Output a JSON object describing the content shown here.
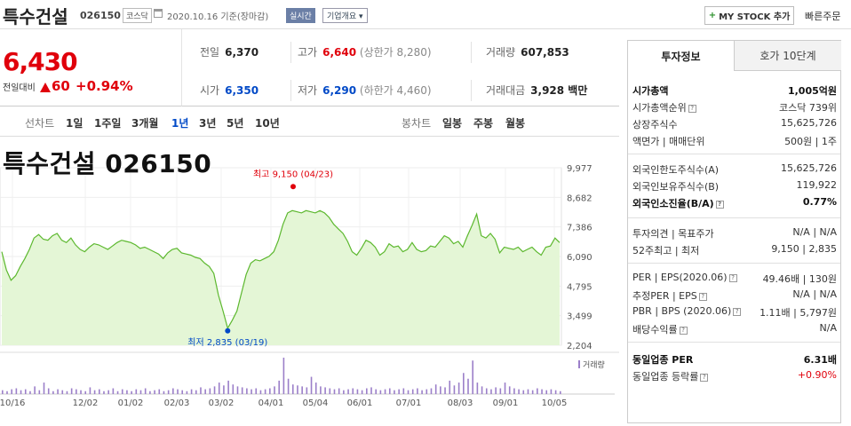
{
  "header": {
    "stock_name": "특수건설",
    "stock_code": "026150",
    "market": "코스닥",
    "date": "2020.10.16 기준(장마감)",
    "realtime": "실시간",
    "company_info": "기업개요",
    "my_stock": "MY STOCK 추가",
    "quick_order": "빠른주문"
  },
  "price": {
    "current": "6,430",
    "change_label": "전일대비",
    "change": "60",
    "change_pct": "+0.94%"
  },
  "stats": {
    "prev_close_label": "전일",
    "prev_close": "6,370",
    "high_label": "고가",
    "high": "6,640",
    "upper_limit": "(상한가 8,280)",
    "volume_label": "거래량",
    "volume": "607,853",
    "open_label": "시가",
    "open": "6,350",
    "low_label": "저가",
    "low": "6,290",
    "lower_limit": "(하한가 4,460)",
    "trade_value_label": "거래대금",
    "trade_value": "3,928 백만"
  },
  "period_tabs": {
    "label": "선차트",
    "items": [
      "1일",
      "1주일",
      "3개월",
      "1년",
      "3년",
      "5년",
      "10년"
    ],
    "selected": "1년",
    "candle_label": "봉차트",
    "candle_items": [
      "일봉",
      "주봉",
      "월봉"
    ]
  },
  "chart_data": {
    "type": "area",
    "title": "특수건설 026150",
    "y_ticks": [
      "9,977",
      "8,682",
      "7,386",
      "6,090",
      "4,795",
      "3,499",
      "2,204"
    ],
    "ylim": [
      2204,
      9977
    ],
    "x_ticks": [
      "10/16",
      "12/02",
      "01/02",
      "02/03",
      "03/02",
      "04/01",
      "05/04",
      "06/01",
      "07/01",
      "08/03",
      "09/01",
      "10/05"
    ],
    "high_label": "최고 9,150 (04/23)",
    "low_label": "최저 2,835 (03/19)",
    "volume_legend": "거래량",
    "values": [
      6300,
      5500,
      5050,
      5250,
      5650,
      6000,
      6400,
      6900,
      7050,
      6850,
      6800,
      7000,
      7100,
      6800,
      6700,
      6900,
      6600,
      6400,
      6300,
      6500,
      6650,
      6600,
      6500,
      6400,
      6550,
      6700,
      6800,
      6750,
      6700,
      6600,
      6450,
      6500,
      6400,
      6300,
      6200,
      6000,
      6250,
      6400,
      6450,
      6250,
      6200,
      6150,
      6050,
      6000,
      5800,
      5650,
      5350,
      4400,
      3700,
      2950,
      3300,
      3700,
      4500,
      5300,
      5800,
      5950,
      5900,
      6000,
      6100,
      6300,
      6800,
      7500,
      8000,
      8100,
      8050,
      8000,
      8100,
      8050,
      8000,
      8100,
      8000,
      7800,
      7500,
      7300,
      7100,
      6750,
      6300,
      6150,
      6450,
      6800,
      6700,
      6500,
      6150,
      6300,
      6650,
      6500,
      6550,
      6300,
      6400,
      6700,
      6400,
      6300,
      6350,
      6550,
      6500,
      6750,
      7000,
      6900,
      6650,
      6750,
      6500,
      7000,
      7450,
      7950,
      7000,
      6900,
      7100,
      6850,
      6250,
      6500,
      6450,
      6400,
      6500,
      6300,
      6400,
      6500,
      6300,
      6150,
      6500,
      6550,
      6900,
      6700
    ],
    "volume_values": [
      4,
      3,
      5,
      6,
      4,
      5,
      3,
      8,
      4,
      12,
      6,
      3,
      5,
      4,
      3,
      6,
      5,
      4,
      3,
      7,
      4,
      5,
      3,
      4,
      6,
      3,
      5,
      4,
      3,
      5,
      4,
      6,
      3,
      4,
      5,
      3,
      4,
      6,
      5,
      4,
      3,
      5,
      4,
      7,
      5,
      6,
      8,
      12,
      9,
      14,
      10,
      8,
      7,
      6,
      5,
      6,
      4,
      5,
      6,
      8,
      14,
      38,
      16,
      10,
      9,
      8,
      7,
      18,
      12,
      8,
      7,
      6,
      5,
      6,
      4,
      5,
      6,
      5,
      4,
      6,
      7,
      5,
      4,
      5,
      6,
      4,
      5,
      6,
      4,
      5,
      6,
      4,
      5,
      6,
      10,
      8,
      7,
      14,
      9,
      12,
      22,
      16,
      35,
      12,
      8,
      6,
      5,
      7,
      6,
      12,
      8,
      6,
      5,
      4,
      5,
      4,
      6,
      5,
      4,
      5,
      4,
      3
    ]
  },
  "side_panel": {
    "tab_invest": "투자정보",
    "tab_orderbook": "호가 10단계",
    "rows1": [
      {
        "k": "시가총액",
        "v": "1,005억원",
        "bold": true
      },
      {
        "k": "시가총액순위",
        "v": "코스닥 739위"
      },
      {
        "k": "상장주식수",
        "v": "15,625,726"
      },
      {
        "k": "액면가 | 매매단위",
        "v": "500원 | 1주"
      }
    ],
    "rows2": [
      {
        "k": "외국인한도주식수(A)",
        "v": "15,625,726"
      },
      {
        "k": "외국인보유주식수(B)",
        "v": "119,922"
      },
      {
        "k": "외국인소진율(B/A)",
        "v": "0.77%",
        "bold": true
      }
    ],
    "rows3": [
      {
        "k": "투자의견 | 목표주가",
        "v": "N/A | N/A"
      },
      {
        "k": "52주최고 | 최저",
        "v": "9,150 | 2,835"
      }
    ],
    "rows4": [
      {
        "k": "PER | EPS(2020.06)",
        "v": "49.46배 | 130원"
      },
      {
        "k": "추정PER | EPS",
        "v": "N/A | N/A"
      },
      {
        "k": "PBR | BPS (2020.06)",
        "v": "1.11배 | 5,797원"
      },
      {
        "k": "배당수익률",
        "v": "N/A"
      }
    ],
    "rows5": [
      {
        "k": "동일업종 PER",
        "v": "6.31배",
        "bold": true
      },
      {
        "k": "동일업종 등락률",
        "v": "+0.90%"
      }
    ]
  }
}
